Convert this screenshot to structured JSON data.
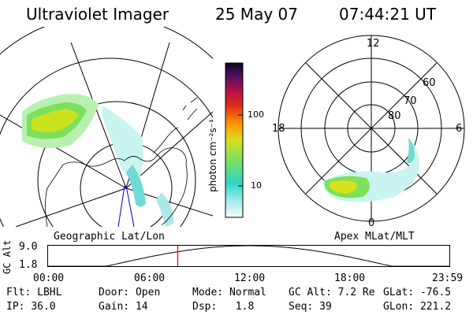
{
  "header": {
    "instrument": "Ultraviolet Imager",
    "date": "25 May 07",
    "time": "07:44:21 UT"
  },
  "colorbar": {
    "unit_label": "photon cm⁻²s⁻¹",
    "ticks": [
      "100",
      "10"
    ],
    "scale": "log"
  },
  "left_panel": {
    "caption": "Geographic Lat/Lon"
  },
  "right_panel": {
    "caption": "Apex MLat/MLT",
    "mlt_labels": [
      "12",
      "18",
      "6",
      "0"
    ],
    "lat_labels": [
      "60",
      "70",
      "80"
    ]
  },
  "timeline": {
    "ylabel": "GC Alt",
    "y_ticks": [
      "9.0",
      "1.8"
    ],
    "x_ticks": [
      "00:00",
      "06:00",
      "12:00",
      "18:00",
      "23:59"
    ],
    "current_time_hours": 7.74,
    "marker_color": "#ff0000"
  },
  "info": {
    "row1": [
      {
        "label": "Flt:",
        "value": "LBHL"
      },
      {
        "label": "Door:",
        "value": "Open"
      },
      {
        "label": "Mode:",
        "value": "Normal"
      },
      {
        "label": "GC Alt:",
        "value": "7.2 Re"
      },
      {
        "label": "GLat:",
        "value": "-76.5"
      }
    ],
    "row2": [
      {
        "label": "IP:",
        "value": "36.0"
      },
      {
        "label": "Gain:",
        "value": "14"
      },
      {
        "label": "Dsp:",
        "value": "1.8"
      },
      {
        "label": "Seq:",
        "value": "39"
      },
      {
        "label": "GLon:",
        "value": "221.2"
      }
    ]
  }
}
